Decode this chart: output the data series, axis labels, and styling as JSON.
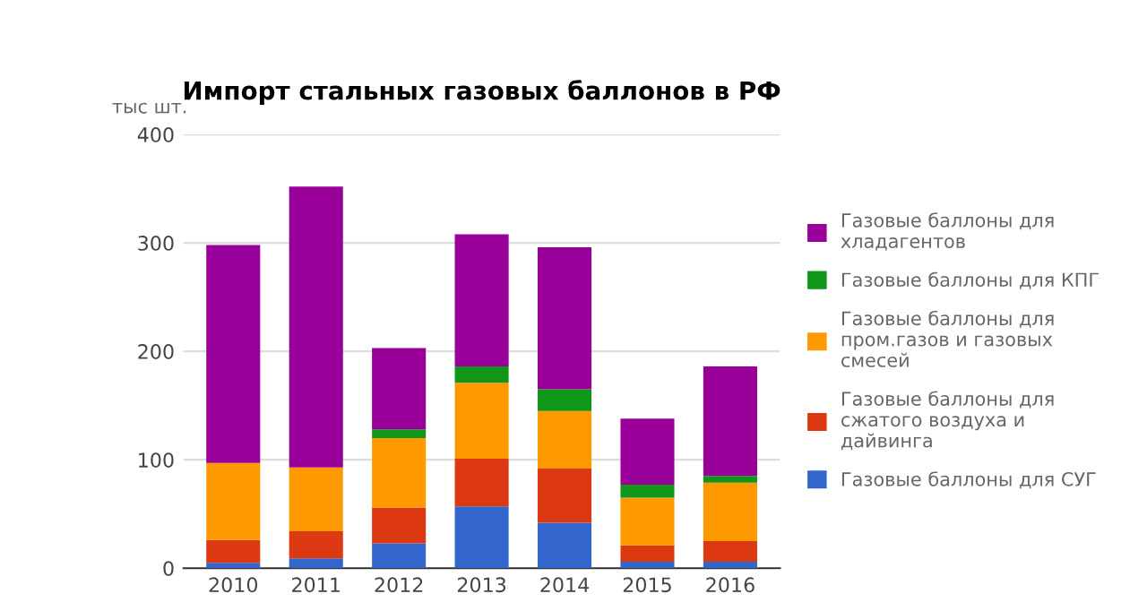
{
  "chart_data": {
    "type": "bar",
    "stacked": true,
    "title": "Импорт стальных газовых баллонов в РФ",
    "ylabel": "тыс шт.",
    "categories": [
      "2010",
      "2011",
      "2012",
      "2013",
      "2014",
      "2015",
      "2016"
    ],
    "series": [
      {
        "name": "Газовые баллоны для СУГ",
        "color": "#3366cc",
        "values": [
          5,
          9,
          23,
          57,
          42,
          6,
          6
        ]
      },
      {
        "name": "Газовые баллоны для сжатого воздуха и дайвинга",
        "color": "#dc3912",
        "values": [
          21,
          25,
          33,
          44,
          50,
          15,
          19
        ]
      },
      {
        "name": "Газовые баллоны для пром.газов и газовых смесей",
        "color": "#ff9900",
        "values": [
          71,
          59,
          64,
          70,
          53,
          44,
          54
        ]
      },
      {
        "name": "Газовые баллоны для КПГ",
        "color": "#109618",
        "values": [
          0,
          0,
          8,
          15,
          20,
          12,
          6
        ]
      },
      {
        "name": "Газовые баллоны для хладагентов",
        "color": "#990099",
        "values": [
          201,
          259,
          75,
          122,
          131,
          61,
          101
        ]
      }
    ],
    "ylim": [
      0,
      400
    ],
    "yticks": [
      0,
      100,
      200,
      300,
      400
    ],
    "grid": "y",
    "legend": "right"
  }
}
